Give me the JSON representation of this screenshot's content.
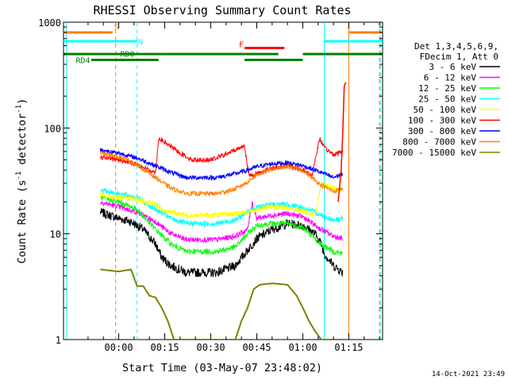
{
  "chart_data": {
    "type": "line",
    "title": "RHESSI Observing Summary Count Rates",
    "xlabel": "Start Time (03-May-07 23:48:02)",
    "ylabel_main": "Count Rate (s",
    "ylabel_sup": "-1",
    "ylabel_mid": " detector",
    "ylabel_end": ")",
    "timestamp": "14-Oct-2021 23:49",
    "x_unit": "minutes since 00:00 UT",
    "xlim": [
      -18,
      86
    ],
    "ylim": [
      1,
      1000
    ],
    "y_scale": "log",
    "x_ticks": [
      {
        "v": 0,
        "label": "00:00"
      },
      {
        "v": 15,
        "label": "00:15"
      },
      {
        "v": 30,
        "label": "00:30"
      },
      {
        "v": 45,
        "label": "00:45"
      },
      {
        "v": 60,
        "label": "01:00"
      },
      {
        "v": 75,
        "label": "01:15"
      }
    ],
    "y_ticks": [
      {
        "v": 1,
        "label": "1"
      },
      {
        "v": 10,
        "label": "10"
      },
      {
        "v": 100,
        "label": "100"
      },
      {
        "v": 1000,
        "label": "1000"
      }
    ],
    "legend_header": [
      "Det 1,3,4,5,6,9,",
      "FDecim 1, Att 0"
    ],
    "series": [
      {
        "name": "3 - 6 keV",
        "color": "#000000",
        "noise": 0.1,
        "points": [
          [
            -6,
            16
          ],
          [
            0,
            14
          ],
          [
            4,
            13
          ],
          [
            8,
            11
          ],
          [
            12,
            8
          ],
          [
            14,
            6
          ],
          [
            17,
            5
          ],
          [
            22,
            4.3
          ],
          [
            32,
            4.3
          ],
          [
            38,
            5
          ],
          [
            42,
            7
          ],
          [
            45,
            9
          ],
          [
            50,
            11
          ],
          [
            55,
            12.5
          ],
          [
            60,
            12
          ],
          [
            64,
            10
          ],
          [
            66,
            8
          ],
          [
            67,
            6.5
          ],
          [
            70,
            5
          ],
          [
            73,
            4.3
          ]
        ]
      },
      {
        "name": "6 - 12 keV",
        "color": "#ff00ff",
        "noise": 0.06,
        "points": [
          [
            -6,
            20
          ],
          [
            0,
            18
          ],
          [
            6,
            16
          ],
          [
            12,
            13
          ],
          [
            17,
            10
          ],
          [
            22,
            8.8
          ],
          [
            32,
            8.8
          ],
          [
            38,
            9.5
          ],
          [
            42,
            11
          ],
          [
            43.5,
            20
          ],
          [
            45,
            14
          ],
          [
            50,
            15
          ],
          [
            55,
            15.5
          ],
          [
            60,
            14.5
          ],
          [
            64,
            12
          ],
          [
            66,
            11
          ],
          [
            70,
            9.5
          ],
          [
            73,
            9
          ]
        ]
      },
      {
        "name": "12 - 25 keV",
        "color": "#00ff00",
        "noise": 0.06,
        "points": [
          [
            -6,
            22
          ],
          [
            0,
            20
          ],
          [
            6,
            17
          ],
          [
            12,
            11
          ],
          [
            17,
            8
          ],
          [
            22,
            6.8
          ],
          [
            32,
            6.8
          ],
          [
            38,
            7.5
          ],
          [
            42,
            10
          ],
          [
            45,
            12
          ],
          [
            50,
            12.5
          ],
          [
            55,
            12.5
          ],
          [
            60,
            11.5
          ],
          [
            64,
            9
          ],
          [
            66,
            8
          ],
          [
            70,
            6.8
          ],
          [
            73,
            6.5
          ]
        ]
      },
      {
        "name": "25 - 50 keV",
        "color": "#00ffff",
        "noise": 0.06,
        "points": [
          [
            -6,
            26
          ],
          [
            0,
            24
          ],
          [
            6,
            22
          ],
          [
            12,
            17
          ],
          [
            17,
            14
          ],
          [
            22,
            12.5
          ],
          [
            32,
            12.5
          ],
          [
            38,
            13.5
          ],
          [
            42,
            16
          ],
          [
            45,
            18
          ],
          [
            50,
            19
          ],
          [
            55,
            19
          ],
          [
            60,
            17.5
          ],
          [
            64,
            16
          ],
          [
            66,
            15
          ],
          [
            70,
            13.5
          ],
          [
            73,
            14
          ]
        ]
      },
      {
        "name": "50 - 100 keV",
        "color": "#ffff00",
        "noise": 0.06,
        "points": [
          [
            -6,
            23
          ],
          [
            0,
            22
          ],
          [
            6,
            21
          ],
          [
            12,
            19
          ],
          [
            14,
            17
          ],
          [
            17,
            16
          ],
          [
            22,
            15
          ],
          [
            32,
            15
          ],
          [
            38,
            15.5
          ],
          [
            42,
            16
          ],
          [
            45,
            17
          ],
          [
            50,
            18
          ],
          [
            55,
            17.5
          ],
          [
            60,
            16.5
          ],
          [
            64,
            15
          ],
          [
            66,
            30
          ],
          [
            70,
            27
          ],
          [
            73,
            26
          ]
        ]
      },
      {
        "name": "100 - 300 keV",
        "color": "#ff0000",
        "noise": 0.05,
        "points": [
          [
            -6,
            53
          ],
          [
            0,
            50
          ],
          [
            6,
            45
          ],
          [
            10,
            40
          ],
          [
            12,
            38
          ],
          [
            13,
            80
          ],
          [
            16,
            70
          ],
          [
            20,
            58
          ],
          [
            24,
            50
          ],
          [
            30,
            50
          ],
          [
            34,
            55
          ],
          [
            38,
            62
          ],
          [
            41,
            68
          ],
          [
            42.5,
            35
          ],
          [
            46,
            38
          ],
          [
            50,
            42
          ],
          [
            55,
            44
          ],
          [
            60,
            40
          ],
          [
            63,
            36
          ],
          [
            65.5,
            80
          ],
          [
            67,
            65
          ],
          [
            70,
            56
          ],
          [
            73,
            60
          ]
        ]
      },
      {
        "name": "300 - 800 keV",
        "color": "#0000ff",
        "noise": 0.05,
        "points": [
          [
            -6,
            62
          ],
          [
            0,
            58
          ],
          [
            6,
            52
          ],
          [
            12,
            44
          ],
          [
            17,
            38
          ],
          [
            22,
            34
          ],
          [
            32,
            34
          ],
          [
            38,
            37
          ],
          [
            42,
            40
          ],
          [
            45,
            43
          ],
          [
            50,
            46
          ],
          [
            55,
            47
          ],
          [
            60,
            44
          ],
          [
            64,
            40
          ],
          [
            66,
            38
          ],
          [
            70,
            34
          ],
          [
            73,
            37
          ]
        ]
      },
      {
        "name": "800 - 7000 keV",
        "color": "#ff8000",
        "noise": 0.05,
        "points": [
          [
            -6,
            58
          ],
          [
            0,
            54
          ],
          [
            6,
            45
          ],
          [
            12,
            34
          ],
          [
            17,
            27
          ],
          [
            22,
            24
          ],
          [
            32,
            24
          ],
          [
            38,
            26.5
          ],
          [
            42,
            31
          ],
          [
            45,
            36
          ],
          [
            50,
            41
          ],
          [
            55,
            43
          ],
          [
            60,
            40
          ],
          [
            64,
            32
          ],
          [
            66,
            29
          ],
          [
            70,
            25
          ],
          [
            73,
            27
          ]
        ]
      },
      {
        "name": "7000 - 15000 keV",
        "color": "#808000",
        "noise": 0.0,
        "points": [
          [
            -6,
            4.6
          ],
          [
            0,
            4.4
          ],
          [
            4,
            4.6
          ],
          [
            6,
            3.2
          ],
          [
            8,
            3.2
          ],
          [
            10,
            2.6
          ],
          [
            12,
            2.5
          ],
          [
            14,
            2.0
          ],
          [
            16,
            1.5
          ],
          [
            18,
            1.0
          ],
          [
            20,
            1.0
          ],
          [
            32,
            1.0
          ],
          [
            38,
            1.0
          ],
          [
            40,
            1.5
          ],
          [
            42,
            2.0
          ],
          [
            44,
            3.0
          ],
          [
            46,
            3.3
          ],
          [
            50,
            3.4
          ],
          [
            55,
            3.3
          ],
          [
            58,
            2.6
          ],
          [
            60,
            2.0
          ],
          [
            62,
            1.5
          ],
          [
            64,
            1.2
          ],
          [
            66,
            1.0
          ],
          [
            70,
            1.0
          ],
          [
            73,
            1.0
          ]
        ]
      }
    ],
    "flare_spike": {
      "x": [
        71.5,
        72.5,
        73,
        73.5,
        74
      ],
      "y": [
        20,
        40,
        90,
        250,
        270
      ]
    },
    "status_bars": [
      {
        "label": "S",
        "color": "#ff8000",
        "y": 800,
        "segments": [
          [
            -18,
            -2
          ],
          [
            75,
            86
          ]
        ]
      },
      {
        "label": "N",
        "color": "#00ffff",
        "y": 660,
        "segments": [
          [
            -18,
            6
          ],
          [
            67,
            86
          ]
        ]
      },
      {
        "label": "F",
        "color": "#ff0000",
        "y": 570,
        "segments": [
          [
            41,
            54
          ]
        ]
      },
      {
        "label": "RD0",
        "color": "#008000",
        "y": 500,
        "segments": [
          [
            -18,
            15
          ],
          [
            15,
            41
          ],
          [
            41,
            52
          ],
          [
            60,
            86
          ]
        ]
      },
      {
        "label": "RD4",
        "color": "#008000",
        "y": 440,
        "segments": [
          [
            -9,
            13
          ],
          [
            41,
            60
          ]
        ]
      }
    ],
    "vertical_lines": [
      {
        "x": -17,
        "color": "#00ffff",
        "style": "solid"
      },
      {
        "x": -1,
        "color": "#ff8000",
        "style": "dashed"
      },
      {
        "x": 6,
        "color": "#00ffff",
        "style": "dashed"
      },
      {
        "x": 67,
        "color": "#00ffff",
        "style": "solid"
      },
      {
        "x": 75,
        "color": "#ff8000",
        "style": "solid"
      },
      {
        "x": 85,
        "color": "#ff8000",
        "style": "dashed"
      },
      {
        "x": 85.3,
        "color": "#00ffff",
        "style": "dashed"
      }
    ],
    "colors": {
      "background": "#ffffff",
      "axis": "#000000"
    }
  }
}
